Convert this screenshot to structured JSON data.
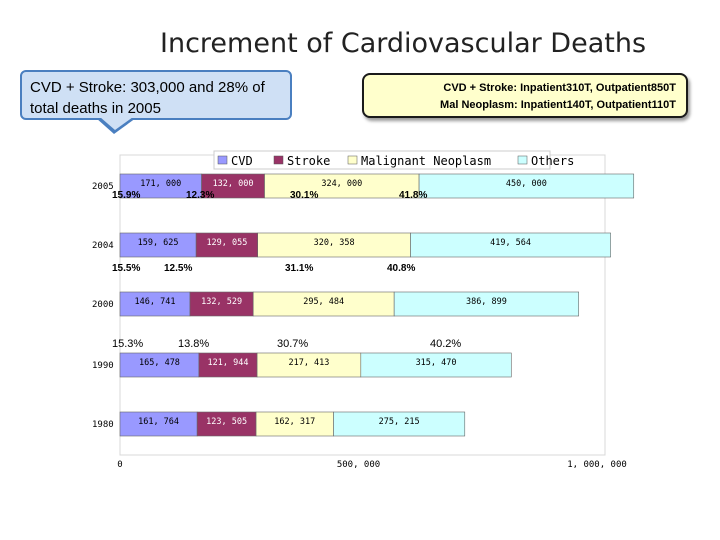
{
  "slide": {
    "title": "Increment of Cardiovascular Deaths",
    "callout_left": "CVD + Stroke: 303,000 and 28% of total deaths in 2005",
    "callout_right_line1": "CVD + Stroke: Inpatient310T, Outpatient850T",
    "callout_right_line2": "Mal Neoplasm: Inpatient140T, Outpatient110T"
  },
  "chart_data": {
    "type": "bar",
    "orientation": "horizontal",
    "stacked": true,
    "categories": [
      "2005",
      "2004",
      "2000",
      "1990",
      "1980"
    ],
    "series": [
      {
        "name": "CVD",
        "color": "#9999ff",
        "values": [
          171000,
          159625,
          146741,
          165478,
          161764
        ],
        "labels": [
          "171, 000",
          "159, 625",
          "146, 741",
          "165, 478",
          "161, 764"
        ]
      },
      {
        "name": "Stroke",
        "color": "#993366",
        "values": [
          132000,
          129055,
          132529,
          121944,
          123505
        ],
        "labels": [
          "132, 000",
          "129, 055",
          "132, 529",
          "121, 944",
          "123, 505"
        ]
      },
      {
        "name": "Malignant Neoplasm",
        "color": "#ffffcc",
        "values": [
          324000,
          320358,
          295484,
          217413,
          162317
        ],
        "labels": [
          "324, 000",
          "320, 358",
          "295, 484",
          "217, 413",
          "162, 317"
        ]
      },
      {
        "name": "Others",
        "color": "#ccffff",
        "values": [
          450000,
          419564,
          386899,
          315470,
          275215
        ],
        "labels": [
          "450, 000",
          "419, 564",
          "386, 899",
          "315, 470",
          "275, 215"
        ]
      }
    ],
    "percent_annotations": [
      {
        "year": "2005",
        "values": [
          "15.9%",
          "12.3%",
          "30.1%",
          "41.8%"
        ]
      },
      {
        "year": "2004",
        "values": [
          "15.5%",
          "12.5%",
          "31.1%",
          "40.8%"
        ]
      },
      {
        "year": "2000",
        "values": [
          "15.3%",
          "13.8%",
          "30.7%",
          "40.2%"
        ]
      }
    ],
    "xlim": [
      0,
      1000000
    ],
    "xticks": [
      0,
      500000,
      1000000
    ],
    "xtick_labels": [
      "0",
      "500, 000",
      "1, 000, 000"
    ],
    "legend_position": "top"
  }
}
